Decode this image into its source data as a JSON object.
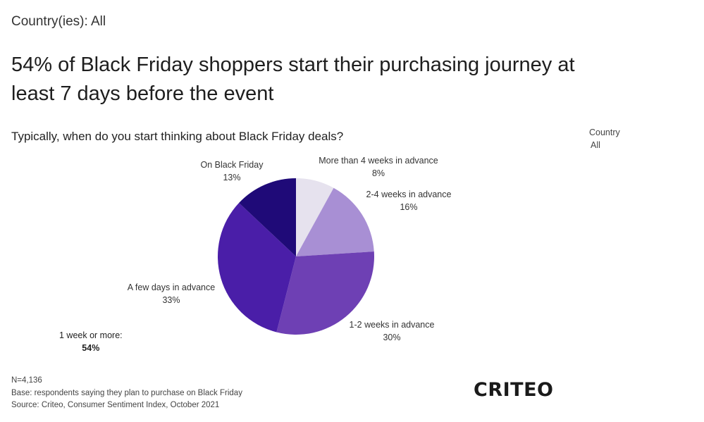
{
  "filter_line": "Country(ies): All",
  "headline": "54% of Black Friday shoppers start their purchasing journey at least 7 days before the event",
  "side_filter": {
    "label": "Country",
    "value": "All"
  },
  "summary": {
    "label": "1 week or more:",
    "value": "54%"
  },
  "footnotes": {
    "n": "N=4,136",
    "base": "Base: respondents saying they plan to purchase on Black Friday",
    "source": "Source: Criteo, Consumer Sentiment Index, October 2021"
  },
  "logo_text": "CRITEO",
  "chart_data": {
    "type": "pie",
    "title": "Typically, when do you start thinking about Black Friday deals?",
    "slices": [
      {
        "label": "More than 4 weeks in advance",
        "value": 8,
        "value_label": "8%",
        "color": "#e6e2ee"
      },
      {
        "label": "2-4 weeks in advance",
        "value": 16,
        "value_label": "16%",
        "color": "#a88fd4"
      },
      {
        "label": "1-2 weeks in advance",
        "value": 30,
        "value_label": "30%",
        "color": "#6e40b4"
      },
      {
        "label": "A few days in advance",
        "value": 33,
        "value_label": "33%",
        "color": "#4a1ea8"
      },
      {
        "label": "On Black Friday",
        "value": 13,
        "value_label": "13%",
        "color": "#1f0a78"
      }
    ]
  }
}
